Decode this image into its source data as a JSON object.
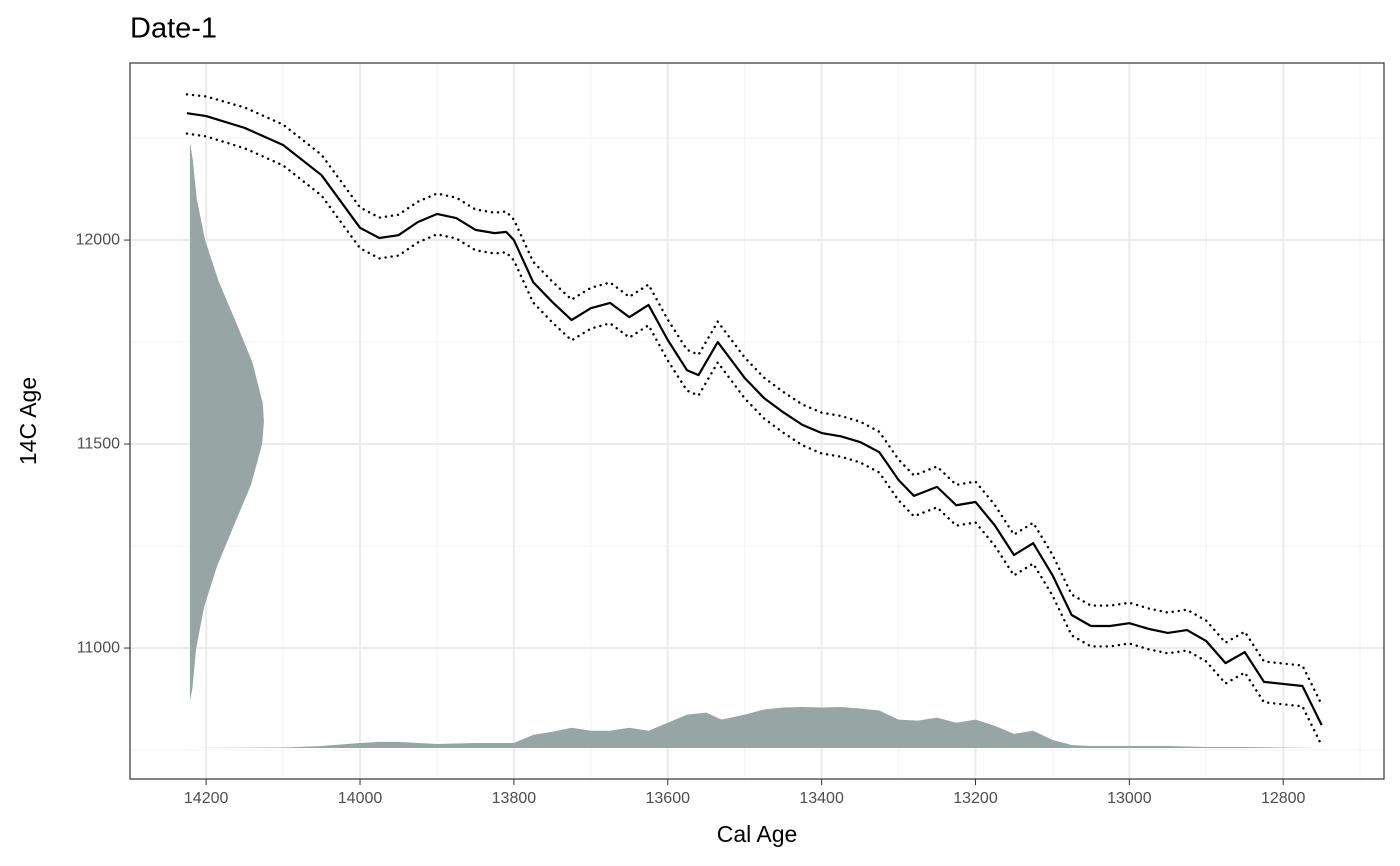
{
  "chart_data": {
    "type": "line",
    "title": "Date-1",
    "x_label": "Cal Age",
    "y_label": "14C Age",
    "xlim": [
      14299,
      12669
    ],
    "ylim": [
      10679,
      12434
    ],
    "xticks": [
      14200,
      14000,
      13800,
      13600,
      13400,
      13200,
      13000,
      12800
    ],
    "yticks": [
      11000,
      11500,
      12000
    ],
    "xminor": [
      14300,
      14100,
      13900,
      13700,
      13500,
      13300,
      13100,
      12900,
      12700
    ],
    "yminor": [
      10750,
      11250,
      11750,
      12250
    ],
    "grid": true,
    "x": [
      14225,
      14200,
      14150,
      14100,
      14050,
      14000,
      13975,
      13950,
      13925,
      13900,
      13875,
      13850,
      13825,
      13810,
      13800,
      13775,
      13750,
      13725,
      13700,
      13675,
      13650,
      13625,
      13600,
      13575,
      13560,
      13535,
      13500,
      13475,
      13450,
      13425,
      13400,
      13375,
      13350,
      13325,
      13300,
      13280,
      13250,
      13225,
      13200,
      13175,
      13150,
      13125,
      13100,
      13075,
      13050,
      13025,
      13000,
      12975,
      12950,
      12925,
      12900,
      12875,
      12850,
      12825,
      12800,
      12775,
      12750
    ],
    "series": [
      {
        "color": "#000000",
        "dash": "solid",
        "values": [
          12311,
          12304,
          12275,
          12233,
          12159,
          12030,
          12005,
          12012,
          12044,
          12064,
          12054,
          12025,
          12017,
          12020,
          12000,
          11897,
          11848,
          11804,
          11833,
          11846,
          11811,
          11841,
          11755,
          11681,
          11669,
          11750,
          11662,
          11613,
          11578,
          11547,
          11527,
          11519,
          11505,
          11480,
          11412,
          11373,
          11395,
          11350,
          11358,
          11301,
          11228,
          11257,
          11179,
          11081,
          11054,
          11054,
          11061,
          11047,
          11037,
          11044,
          11017,
          10963,
          10990,
          10917,
          10912,
          10907,
          10811
        ]
      },
      {
        "color": "#000000",
        "dash": "dotted",
        "values": [
          12357,
          12352,
          12325,
          12283,
          12209,
          12080,
          12055,
          12062,
          12094,
          12114,
          12104,
          12075,
          12067,
          12070,
          12050,
          11947,
          11898,
          11854,
          11883,
          11896,
          11861,
          11891,
          11805,
          11731,
          11719,
          11800,
          11712,
          11663,
          11628,
          11597,
          11577,
          11569,
          11555,
          11530,
          11462,
          11423,
          11445,
          11400,
          11408,
          11351,
          11278,
          11307,
          11229,
          11131,
          11104,
          11104,
          11111,
          11097,
          11087,
          11094,
          11067,
          11013,
          11040,
          10967,
          10962,
          10957,
          10861
        ]
      },
      {
        "color": "#000000",
        "dash": "dotted",
        "values": [
          12261,
          12254,
          12225,
          12183,
          12109,
          11980,
          11955,
          11962,
          11994,
          12014,
          12004,
          11975,
          11967,
          11970,
          11950,
          11847,
          11798,
          11754,
          11783,
          11796,
          11761,
          11791,
          11705,
          11631,
          11619,
          11700,
          11612,
          11563,
          11528,
          11497,
          11477,
          11469,
          11455,
          11430,
          11362,
          11323,
          11345,
          11300,
          11308,
          11251,
          11178,
          11207,
          11129,
          11031,
          11004,
          11004,
          11011,
          10997,
          10987,
          10994,
          10967,
          10913,
          10940,
          10867,
          10862,
          10857,
          10761
        ]
      }
    ],
    "densities": {
      "color": "#97a6a5",
      "calendar": {
        "x": [
          14225,
          14100,
          14050,
          14000,
          13975,
          13950,
          13900,
          13850,
          13800,
          13775,
          13750,
          13725,
          13700,
          13675,
          13650,
          13625,
          13600,
          13575,
          13550,
          13530,
          13500,
          13475,
          13450,
          13425,
          13400,
          13375,
          13350,
          13325,
          13300,
          13275,
          13250,
          13225,
          13200,
          13175,
          13150,
          13125,
          13100,
          13075,
          13050,
          13000,
          12950,
          12900,
          12850,
          12750
        ],
        "values": [
          0,
          0.5,
          2,
          5,
          6,
          6,
          4,
          5,
          5,
          13,
          16,
          20,
          17,
          17,
          20,
          17,
          25,
          33,
          35,
          28,
          33,
          38,
          40,
          40.5,
          40,
          40.5,
          39,
          37,
          28,
          27,
          30,
          25,
          28,
          22,
          14,
          17,
          8,
          3,
          2,
          2,
          2,
          1,
          1,
          0
        ]
      },
      "radiocarbon": {
        "y": [
          10870,
          10900,
          11000,
          11100,
          11200,
          11300,
          11400,
          11500,
          11555,
          11600,
          11700,
          11800,
          11900,
          12000,
          12100,
          12200,
          12240
        ],
        "values": [
          0,
          0.032,
          0.085,
          0.191,
          0.365,
          0.594,
          0.825,
          0.976,
          1,
          0.984,
          0.845,
          0.619,
          0.386,
          0.205,
          0.093,
          0.036,
          0
        ]
      }
    }
  }
}
